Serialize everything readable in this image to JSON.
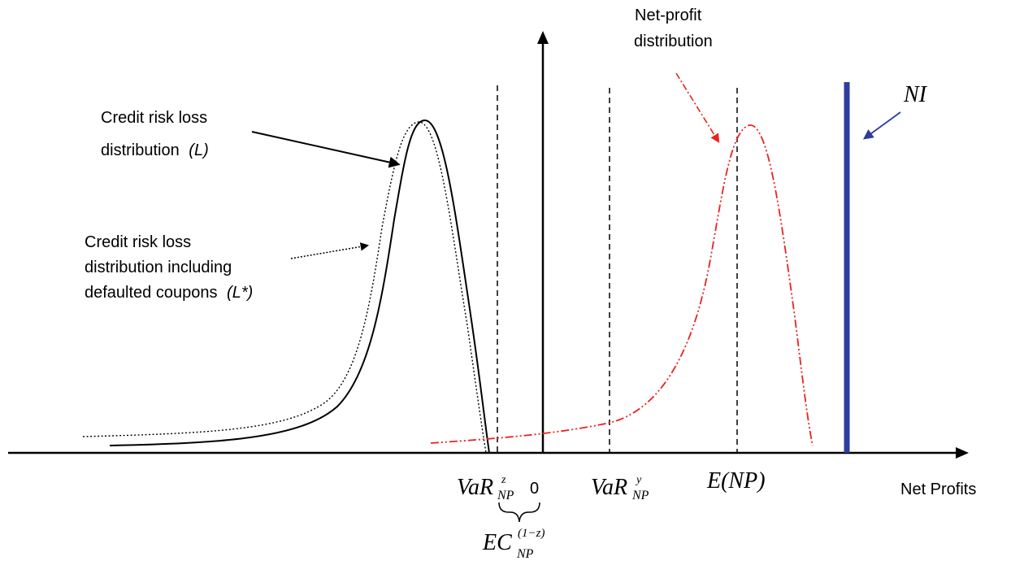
{
  "labels": {
    "credit_loss_l_line1": "Credit risk loss",
    "credit_loss_l_line2": "distribution",
    "credit_loss_l_symbol": "(L)",
    "credit_loss_lstar_line1": "Credit risk loss",
    "credit_loss_lstar_line2": "distribution including",
    "credit_loss_lstar_line3": "defaulted coupons",
    "credit_loss_lstar_symbol": "(L*)",
    "net_profit_line1": "Net-profit",
    "net_profit_line2": "distribution",
    "ni": "NI",
    "x_axis": "Net Profits",
    "zero": "0",
    "var_z_base": "VaR",
    "var_z_sup": "z",
    "var_z_sub": "NP",
    "var_y_base": "VaR",
    "var_y_sup": "y",
    "var_y_sub": "NP",
    "enp": "E(NP)",
    "ec_base": "EC",
    "ec_sup": "(1−z)",
    "ec_sub": "NP"
  },
  "colors": {
    "net_profit_curve": "#e8231f",
    "ni_bar": "#2e3d9c",
    "ni_arrow": "#2e3d9c",
    "axis": "#000000"
  }
}
